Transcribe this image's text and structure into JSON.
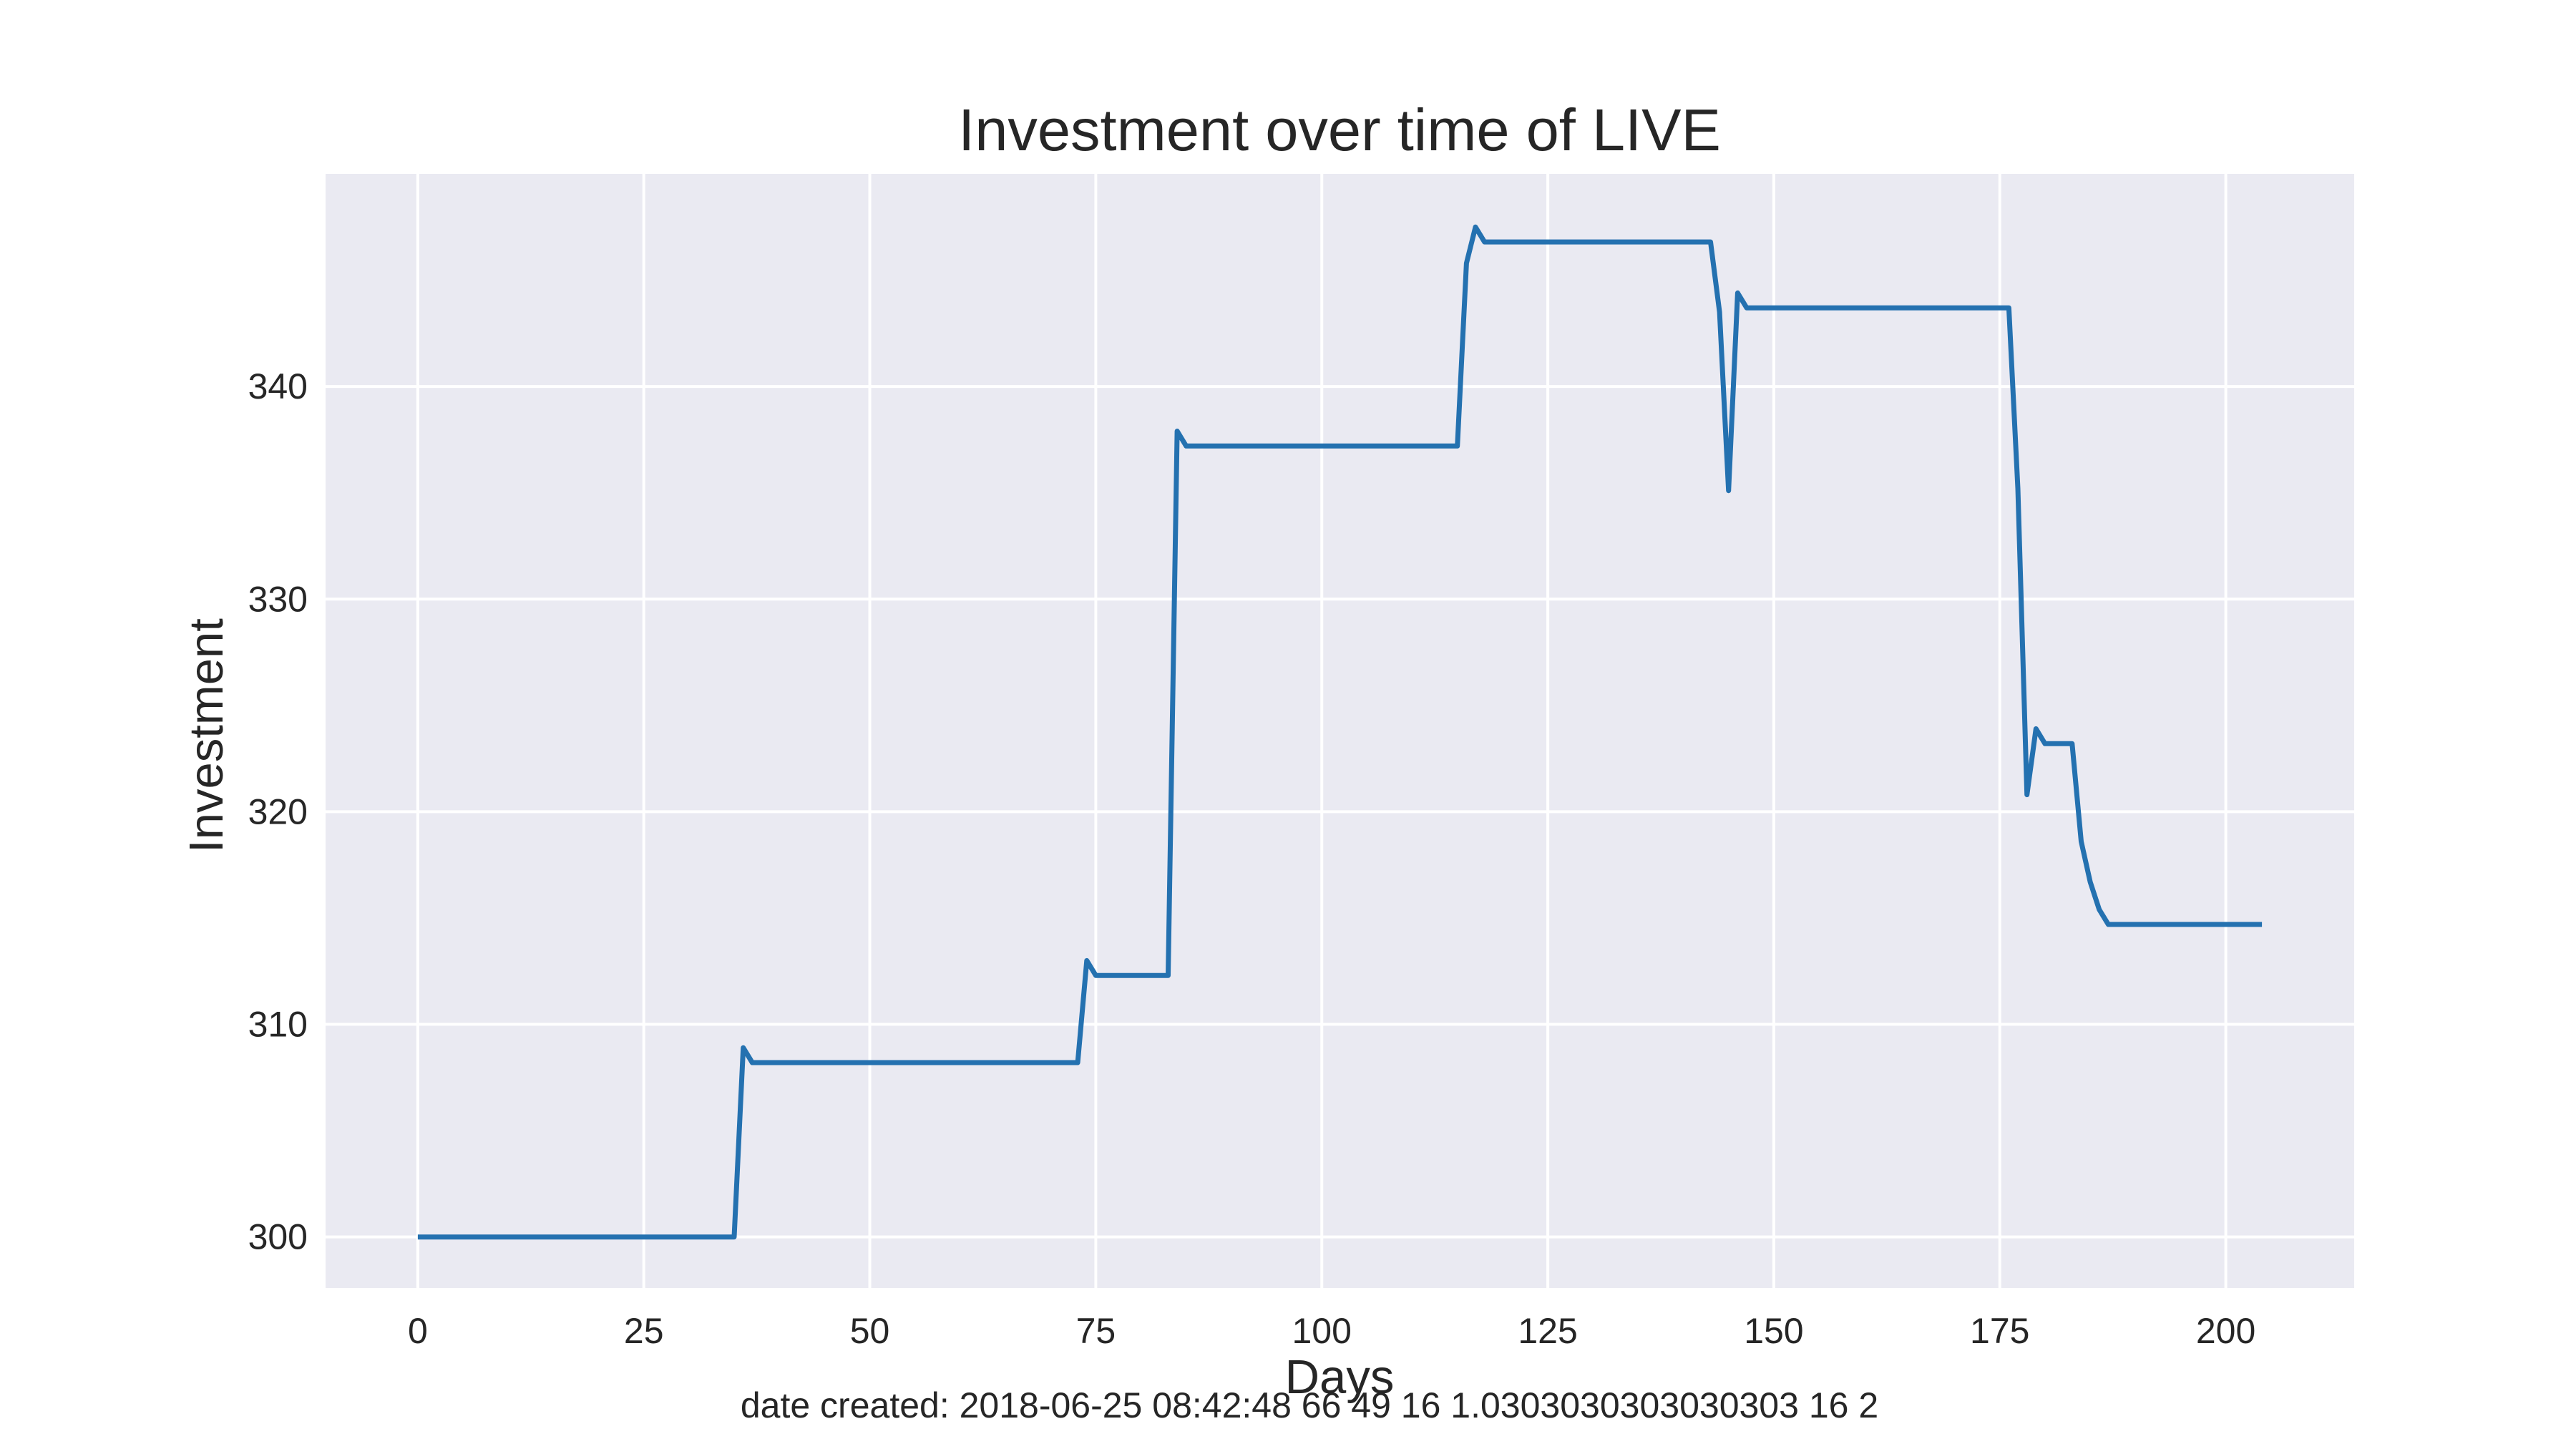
{
  "chart_data": {
    "type": "line",
    "title": "Investment over time of LIVE",
    "xlabel": "Days",
    "ylabel": "Investment",
    "xlim": [
      -10.2,
      214.2
    ],
    "ylim": [
      297.6,
      350.0
    ],
    "xticks": [
      0,
      25,
      50,
      75,
      100,
      125,
      150,
      175,
      200
    ],
    "yticks": [
      300,
      310,
      320,
      330,
      340
    ],
    "grid": true,
    "legend": "none",
    "footer": "date created: 2018-06-25 08:42:48 66 49 16 1.0303030303030303 16 2",
    "colors": {
      "plot_background": "#eaeaf2",
      "grid": "#ffffff",
      "text": "#262626"
    },
    "series": [
      {
        "name": "Investment",
        "color": "#2471b0",
        "x": [
          0,
          35,
          36,
          37,
          73,
          74,
          75,
          83,
          84,
          85,
          115,
          116,
          117,
          118,
          143,
          144,
          145,
          146,
          147,
          176,
          177,
          178,
          179,
          180,
          183,
          184,
          185,
          186,
          187,
          204
        ],
        "y": [
          300.0,
          300.0,
          308.9,
          308.2,
          308.2,
          313.0,
          312.3,
          312.3,
          337.9,
          337.2,
          337.2,
          345.8,
          347.5,
          346.8,
          346.8,
          343.5,
          335.1,
          344.4,
          343.7,
          343.7,
          335.2,
          320.8,
          323.9,
          323.2,
          323.2,
          318.6,
          316.7,
          315.4,
          314.7,
          314.7
        ]
      }
    ]
  }
}
